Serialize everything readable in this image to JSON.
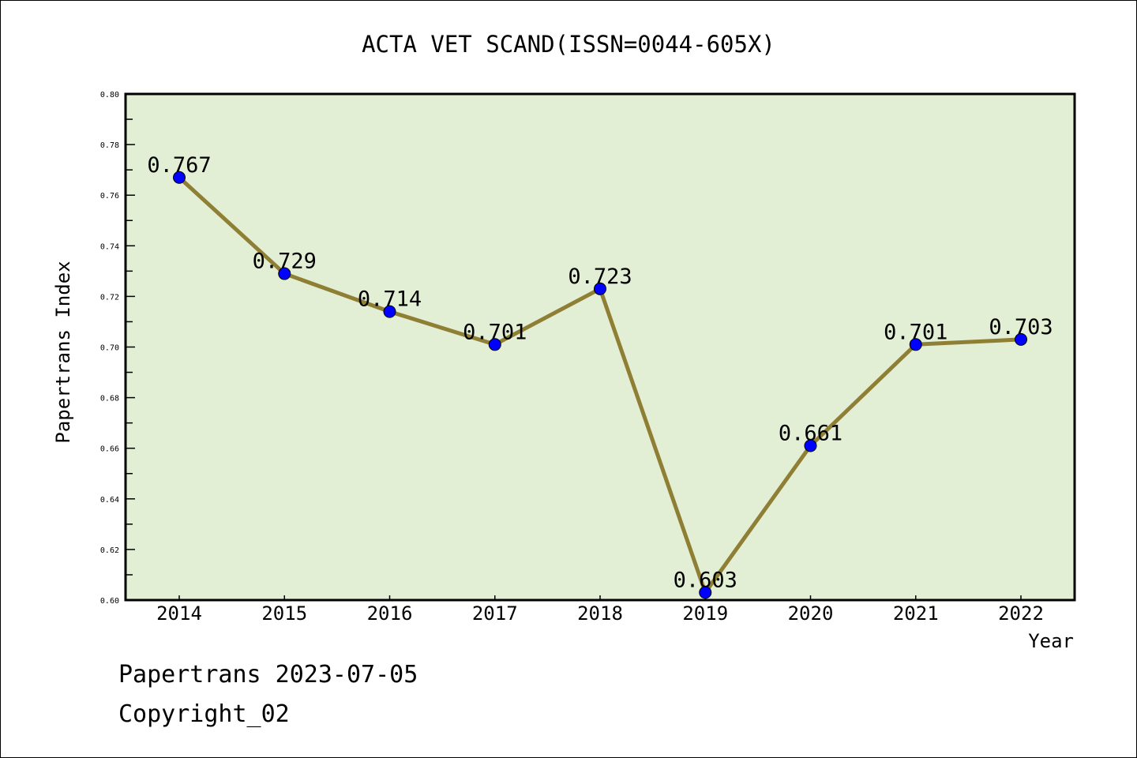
{
  "chart_data": {
    "type": "line",
    "title": "ACTA VET SCAND(ISSN=0044-605X)",
    "xlabel": "Year",
    "ylabel": "Papertrans Index",
    "categories": [
      "2014",
      "2015",
      "2016",
      "2017",
      "2018",
      "2019",
      "2020",
      "2021",
      "2022"
    ],
    "series": [
      {
        "name": "Papertrans Index",
        "values": [
          0.767,
          0.729,
          0.714,
          0.701,
          0.723,
          0.603,
          0.661,
          0.701,
          0.703
        ]
      }
    ],
    "data_labels": [
      "0.767",
      "0.729",
      "0.714",
      "0.701",
      "0.723",
      "0.603",
      "0.661",
      "0.701",
      "0.703"
    ],
    "ylim": [
      0.6,
      0.8
    ],
    "yticks": [
      "0.60",
      "0.62",
      "0.64",
      "0.66",
      "0.68",
      "0.70",
      "0.72",
      "0.74",
      "0.76",
      "0.78",
      "0.80"
    ],
    "grid": false,
    "colors": {
      "plot_bg": "#e2efd5",
      "line": "#8f7f35",
      "marker": "#0000ff"
    }
  },
  "footer": {
    "line1": "Papertrans 2023-07-05",
    "line2": "Copyright_02"
  }
}
